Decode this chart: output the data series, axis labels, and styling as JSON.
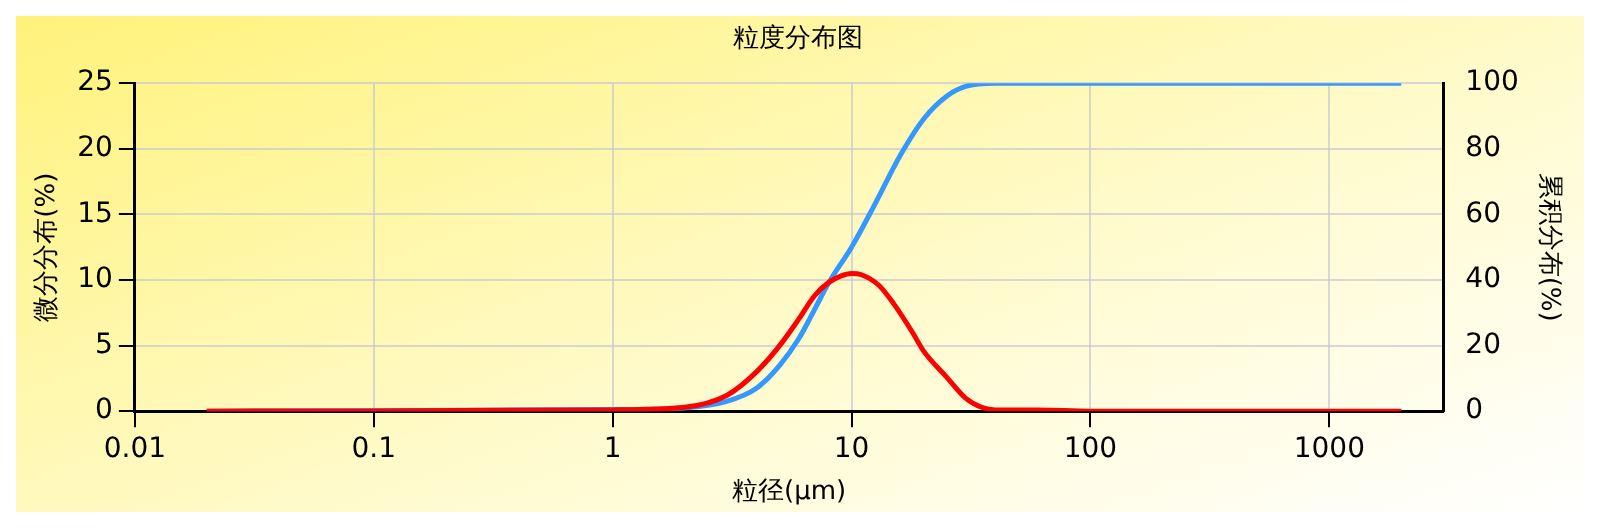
{
  "chart_data": {
    "type": "line",
    "title": "粒度分布图",
    "xlabel": "粒径(μm)",
    "ylabel": "微分分布(%)",
    "y2label": "累积分布(%)",
    "log": "x",
    "grid": true,
    "legend": false,
    "marker": "none",
    "line_style": "solid",
    "xlim": [
      0.01,
      3000
    ],
    "xticks": [
      0.01,
      0.1,
      1,
      10,
      100,
      1000
    ],
    "ylim": [
      0,
      25
    ],
    "yticks": [
      0,
      5,
      10,
      15,
      20,
      25
    ],
    "y2lim": [
      0,
      100
    ],
    "y2ticks": [
      0,
      20,
      40,
      60,
      80,
      100
    ],
    "series": [
      {
        "color": "#ff0000",
        "x": [
          0.02,
          1,
          2,
          3,
          4,
          5,
          6,
          7,
          8,
          9,
          10,
          11,
          13,
          15,
          18,
          20,
          25,
          30,
          35,
          40,
          60,
          100,
          2000
        ],
        "values": [
          0,
          0.1,
          0.3,
          1.2,
          3,
          5,
          7,
          8.8,
          9.8,
          10.3,
          10.5,
          10.4,
          9.6,
          8.2,
          6,
          4.6,
          2.6,
          1,
          0.3,
          0.1,
          0.1,
          0,
          0
        ]
      },
      {
        "color": "#3399ff",
        "axis": "y2",
        "x": [
          0.02,
          1,
          2,
          3,
          4,
          5,
          6,
          7,
          8,
          10,
          12.5,
          16,
          20,
          25,
          30,
          40,
          2000
        ],
        "values": [
          0,
          0.5,
          1,
          3,
          7,
          14,
          22,
          31,
          39,
          50,
          63,
          78,
          89,
          96,
          99,
          100,
          100
        ]
      }
    ]
  }
}
